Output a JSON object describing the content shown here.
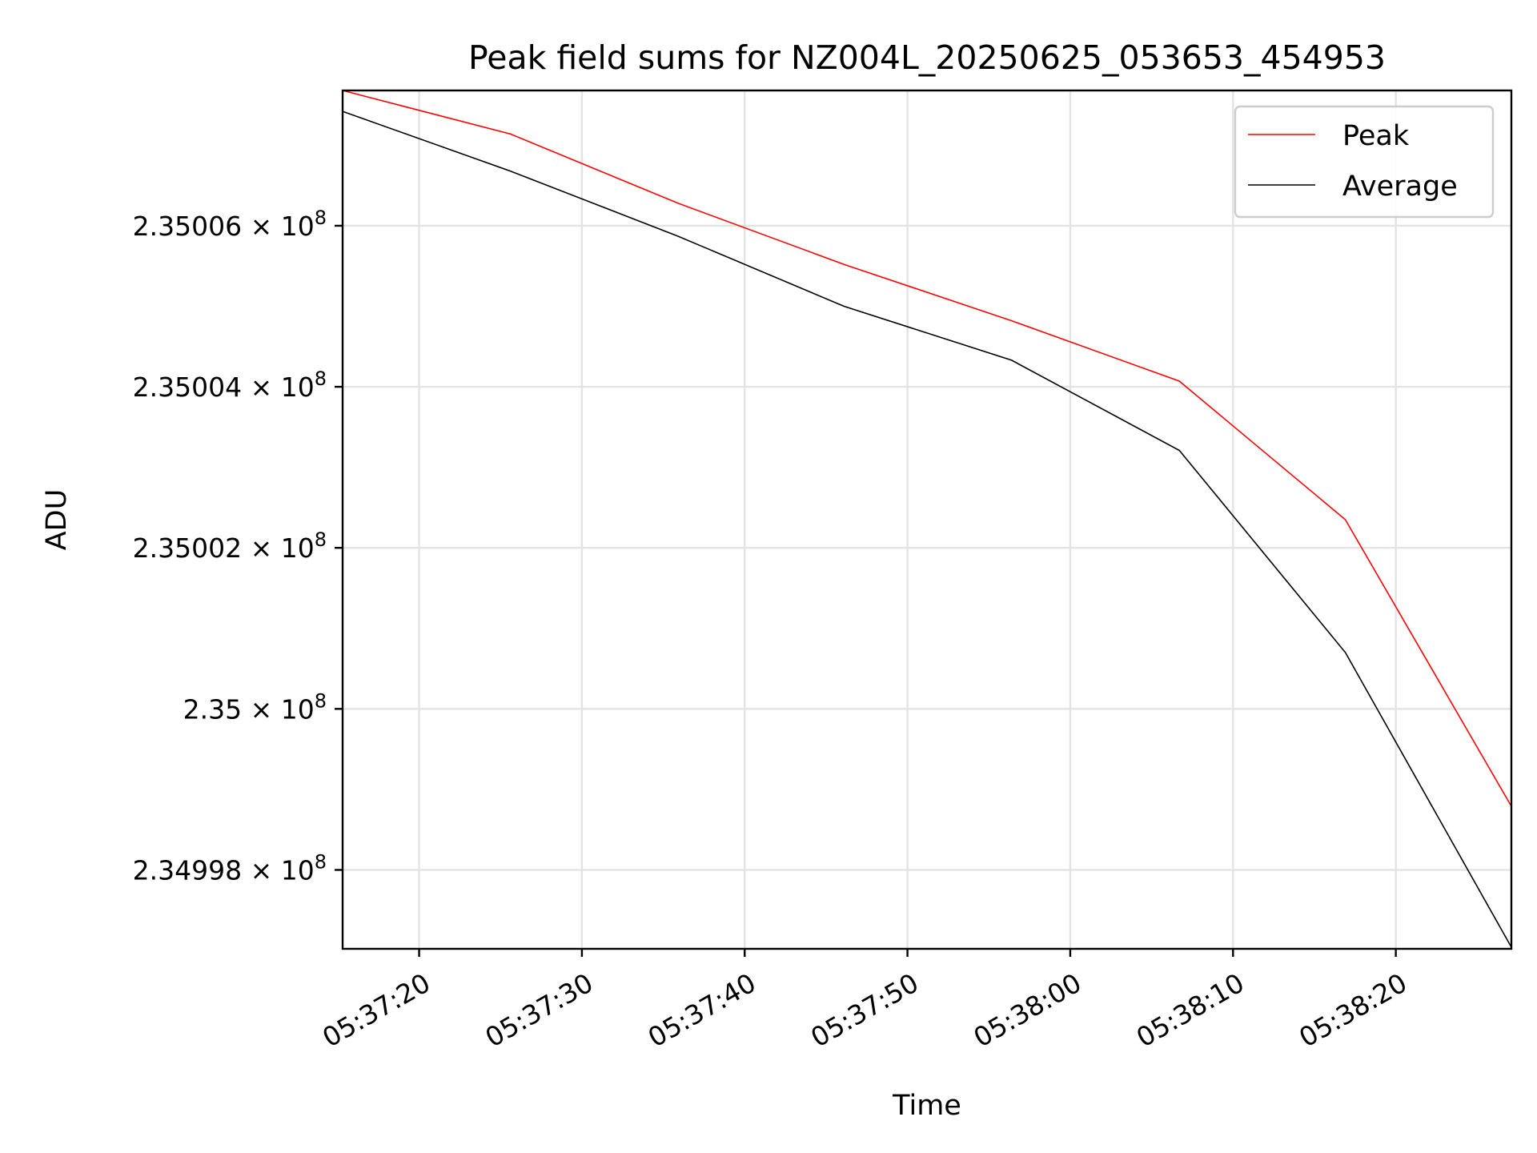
{
  "chart_data": {
    "type": "line",
    "title": "Peak field sums for NZ004L_20250625_053653_454953",
    "xlabel": "Time",
    "ylabel": "ADU",
    "grid": true,
    "legend_position": "top-right",
    "x_ticks": [
      "05:37:20",
      "05:37:30",
      "05:37:40",
      "05:37:50",
      "05:38:00",
      "05:38:10",
      "05:38:20"
    ],
    "y_ticks": [
      {
        "value": 234998000,
        "mantissa": "2.34998"
      },
      {
        "value": 235000000,
        "mantissa": "2.35"
      },
      {
        "value": 235002000,
        "mantissa": "2.35002"
      },
      {
        "value": 235004000,
        "mantissa": "2.35004"
      },
      {
        "value": 235006000,
        "mantissa": "2.35006"
      }
    ],
    "y_tick_suffix": "× 10",
    "y_tick_exponent": "8",
    "xlim": [
      "05:37:15.3",
      "05:38:27.1"
    ],
    "ylim": [
      234997020,
      235007680
    ],
    "x": [
      "05:37:15.3",
      "05:37:25.6",
      "05:37:35.9",
      "05:37:46.1",
      "05:37:56.4",
      "05:38:06.7",
      "05:38:16.9",
      "05:38:27.1"
    ],
    "series": [
      {
        "name": "Peak",
        "color": "#ff0000",
        "values": [
          235007680,
          235007140,
          235006280,
          235005520,
          235004820,
          235004070,
          235002350,
          234998790
        ]
      },
      {
        "name": "Average",
        "color": "#000000",
        "values": [
          235007420,
          235006680,
          235005870,
          235005000,
          235004330,
          235003210,
          235000700,
          234997040
        ]
      }
    ]
  }
}
